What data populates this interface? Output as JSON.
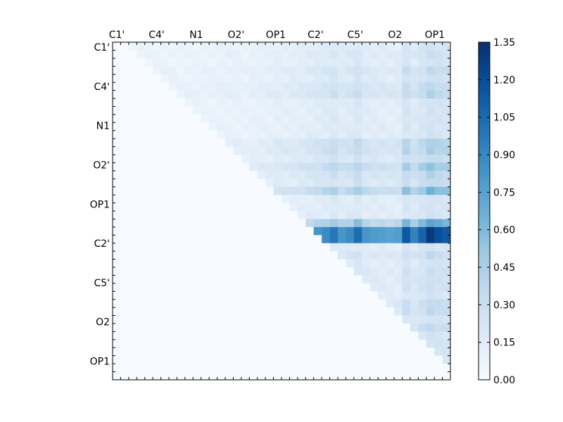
{
  "chart_data": {
    "type": "heatmap",
    "title": "",
    "xlabel": "",
    "ylabel": "",
    "x_tick_labels": [
      "C1'",
      "C4'",
      "N1",
      "O2'",
      "OP1",
      "C2'",
      "C5'",
      "O2",
      "OP1"
    ],
    "y_tick_labels": [
      "C1'",
      "C4'",
      "N1",
      "O2'",
      "OP1",
      "C2'",
      "C5'",
      "O2",
      "OP1"
    ],
    "n_rows": 42,
    "n_cols": 42,
    "colormap": "Blues",
    "colorbar": {
      "min": 0.0,
      "max": 1.35,
      "ticks": [
        "0.00",
        "0.15",
        "0.30",
        "0.45",
        "0.60",
        "0.75",
        "0.90",
        "1.05",
        "1.20",
        "1.35"
      ],
      "colors": [
        "#f7fbff",
        "#deebf7",
        "#c6dbef",
        "#9ecae1",
        "#6baed6",
        "#4292c6",
        "#2171b5",
        "#08519c",
        "#08306b"
      ]
    },
    "matrix_description": "upper-triangular; lower triangle and diagonal ~0",
    "row_band_levels": [
      0.1,
      0.12,
      0.1,
      0.15,
      0.12,
      0.16,
      0.18,
      0.1,
      0.1,
      0.1,
      0.1,
      0.1,
      0.2,
      0.2,
      0.15,
      0.25,
      0.18,
      0.15,
      0.3,
      0.1,
      0.1,
      0.1,
      0.35,
      0.8,
      0.9,
      0.1,
      0.15,
      0.1,
      0.12,
      0.12,
      0.12,
      0.1,
      0.15,
      0.15,
      0.1,
      0.15,
      0.1,
      0.1,
      0.1,
      0.1,
      0.1,
      0.1
    ],
    "col_strength": [
      0,
      0,
      0.1,
      0.1,
      0.1,
      0.12,
      0.1,
      0.12,
      0.1,
      0.12,
      0.12,
      0.14,
      0.14,
      0.16,
      0.18,
      0.18,
      0.16,
      0.2,
      0.22,
      0.24,
      0.3,
      0.3,
      0.32,
      0.35,
      0.4,
      0.45,
      0.5,
      0.6,
      0.45,
      0.5,
      0.65,
      0.45,
      0.42,
      0.4,
      0.38,
      0.4,
      0.75,
      0.55,
      0.7,
      0.9,
      0.8,
      0.75
    ]
  }
}
